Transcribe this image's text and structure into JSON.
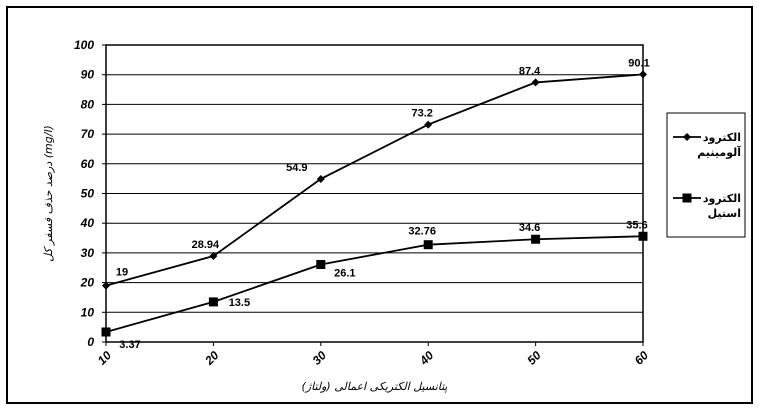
{
  "chart_data": {
    "type": "line",
    "xlabel": "پتانسیل الکتریکی اعمالی (ولتاژ)",
    "ylabel": "درصد حذف فسفر کل (mg/l)",
    "x": [
      10,
      20,
      30,
      40,
      50,
      60
    ],
    "xlim": [
      10,
      60
    ],
    "ylim": [
      0,
      100
    ],
    "yticks": [
      0,
      10,
      20,
      30,
      40,
      50,
      60,
      70,
      80,
      90,
      100
    ],
    "grid": true,
    "legend_position": "right",
    "series": [
      {
        "name_lines": [
          "الکترود",
          "آلومینیم"
        ],
        "marker": "diamond",
        "color": "#000000",
        "values": [
          19,
          28.94,
          54.9,
          73.2,
          87.4,
          90.1
        ],
        "labels": [
          "19",
          "28.94",
          "54.9",
          "73.2",
          "87.4",
          "90.1"
        ]
      },
      {
        "name_lines": [
          "الکترود",
          "استیل"
        ],
        "marker": "square",
        "color": "#000000",
        "values": [
          3.37,
          13.5,
          26.1,
          32.76,
          34.6,
          35.6
        ],
        "labels": [
          "3.37",
          "13.5",
          "26.1",
          "32.76",
          "34.6",
          "35.6"
        ]
      }
    ]
  }
}
